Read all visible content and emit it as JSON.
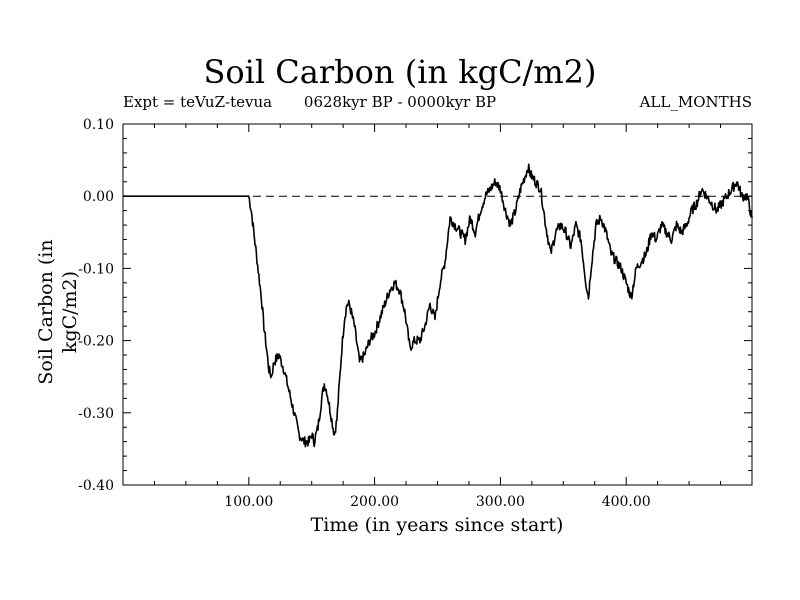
{
  "chart_data": {
    "type": "line",
    "title": "Soil Carbon (in kgC/m2)",
    "subtitle_left": "Expt = teVuZ-tevua",
    "subtitle_center": "0628kyr BP - 0000kyr BP",
    "subtitle_right": "ALL_MONTHS",
    "xlabel": "Time (in years since start)",
    "ylabel": "Soil Carbon (in kgC/m2)",
    "xlim": [
      0,
      500
    ],
    "ylim": [
      -0.4,
      0.1
    ],
    "x_tick_labels": [
      "100.00",
      "200.00",
      "300.00",
      "400.00"
    ],
    "x_tick_values": [
      100,
      200,
      300,
      400
    ],
    "y_tick_labels": [
      "0.10",
      "0.00",
      "-0.10",
      "-0.20",
      "-0.30",
      "-0.40"
    ],
    "y_tick_values": [
      0.1,
      0.0,
      -0.1,
      -0.2,
      -0.3,
      -0.4
    ],
    "reference_line": {
      "y": 0.0,
      "style": "dashed"
    },
    "grid": false,
    "series": [
      {
        "x": [
          0,
          100,
          102,
          104,
          106,
          108,
          110,
          112,
          114,
          116,
          118,
          120,
          124,
          128,
          132,
          136,
          140,
          144,
          148,
          150,
          152,
          155,
          158,
          160,
          162,
          165,
          168,
          170,
          172,
          174,
          176,
          178,
          180,
          184,
          188,
          192,
          196,
          200,
          204,
          208,
          212,
          216,
          220,
          224,
          228,
          232,
          236,
          240,
          244,
          248,
          252,
          256,
          260,
          264,
          268,
          272,
          276,
          280,
          284,
          288,
          292,
          296,
          300,
          304,
          308,
          312,
          316,
          320,
          322,
          324,
          328,
          332,
          336,
          340,
          344,
          348,
          352,
          356,
          360,
          364,
          368,
          370,
          372,
          376,
          380,
          384,
          388,
          392,
          396,
          400,
          404,
          406,
          408,
          412,
          416,
          420,
          424,
          428,
          432,
          436,
          440,
          444,
          448,
          452,
          456,
          460,
          464,
          468,
          472,
          476,
          480,
          484,
          488,
          492,
          496,
          500
        ],
        "y": [
          0.0,
          0.0,
          -0.02,
          -0.05,
          -0.08,
          -0.11,
          -0.14,
          -0.18,
          -0.21,
          -0.24,
          -0.25,
          -0.23,
          -0.22,
          -0.24,
          -0.27,
          -0.3,
          -0.33,
          -0.34,
          -0.34,
          -0.33,
          -0.34,
          -0.32,
          -0.28,
          -0.26,
          -0.27,
          -0.3,
          -0.33,
          -0.31,
          -0.26,
          -0.21,
          -0.17,
          -0.15,
          -0.15,
          -0.18,
          -0.23,
          -0.22,
          -0.2,
          -0.19,
          -0.17,
          -0.15,
          -0.13,
          -0.12,
          -0.13,
          -0.16,
          -0.21,
          -0.2,
          -0.2,
          -0.18,
          -0.15,
          -0.17,
          -0.12,
          -0.09,
          -0.03,
          -0.04,
          -0.05,
          -0.06,
          -0.03,
          -0.05,
          -0.02,
          0.0,
          0.01,
          0.02,
          0.01,
          -0.02,
          -0.04,
          -0.02,
          0.01,
          0.03,
          0.04,
          0.03,
          0.02,
          0.01,
          -0.04,
          -0.08,
          -0.05,
          -0.04,
          -0.05,
          -0.07,
          -0.04,
          -0.06,
          -0.12,
          -0.14,
          -0.1,
          -0.04,
          -0.03,
          -0.05,
          -0.08,
          -0.09,
          -0.1,
          -0.12,
          -0.14,
          -0.12,
          -0.1,
          -0.09,
          -0.08,
          -0.05,
          -0.06,
          -0.04,
          -0.05,
          -0.06,
          -0.04,
          -0.05,
          -0.04,
          -0.02,
          -0.01,
          0.01,
          0.0,
          -0.01,
          -0.02,
          -0.01,
          0.0,
          0.01,
          0.02,
          0.0,
          0.0,
          -0.03
        ]
      }
    ]
  }
}
